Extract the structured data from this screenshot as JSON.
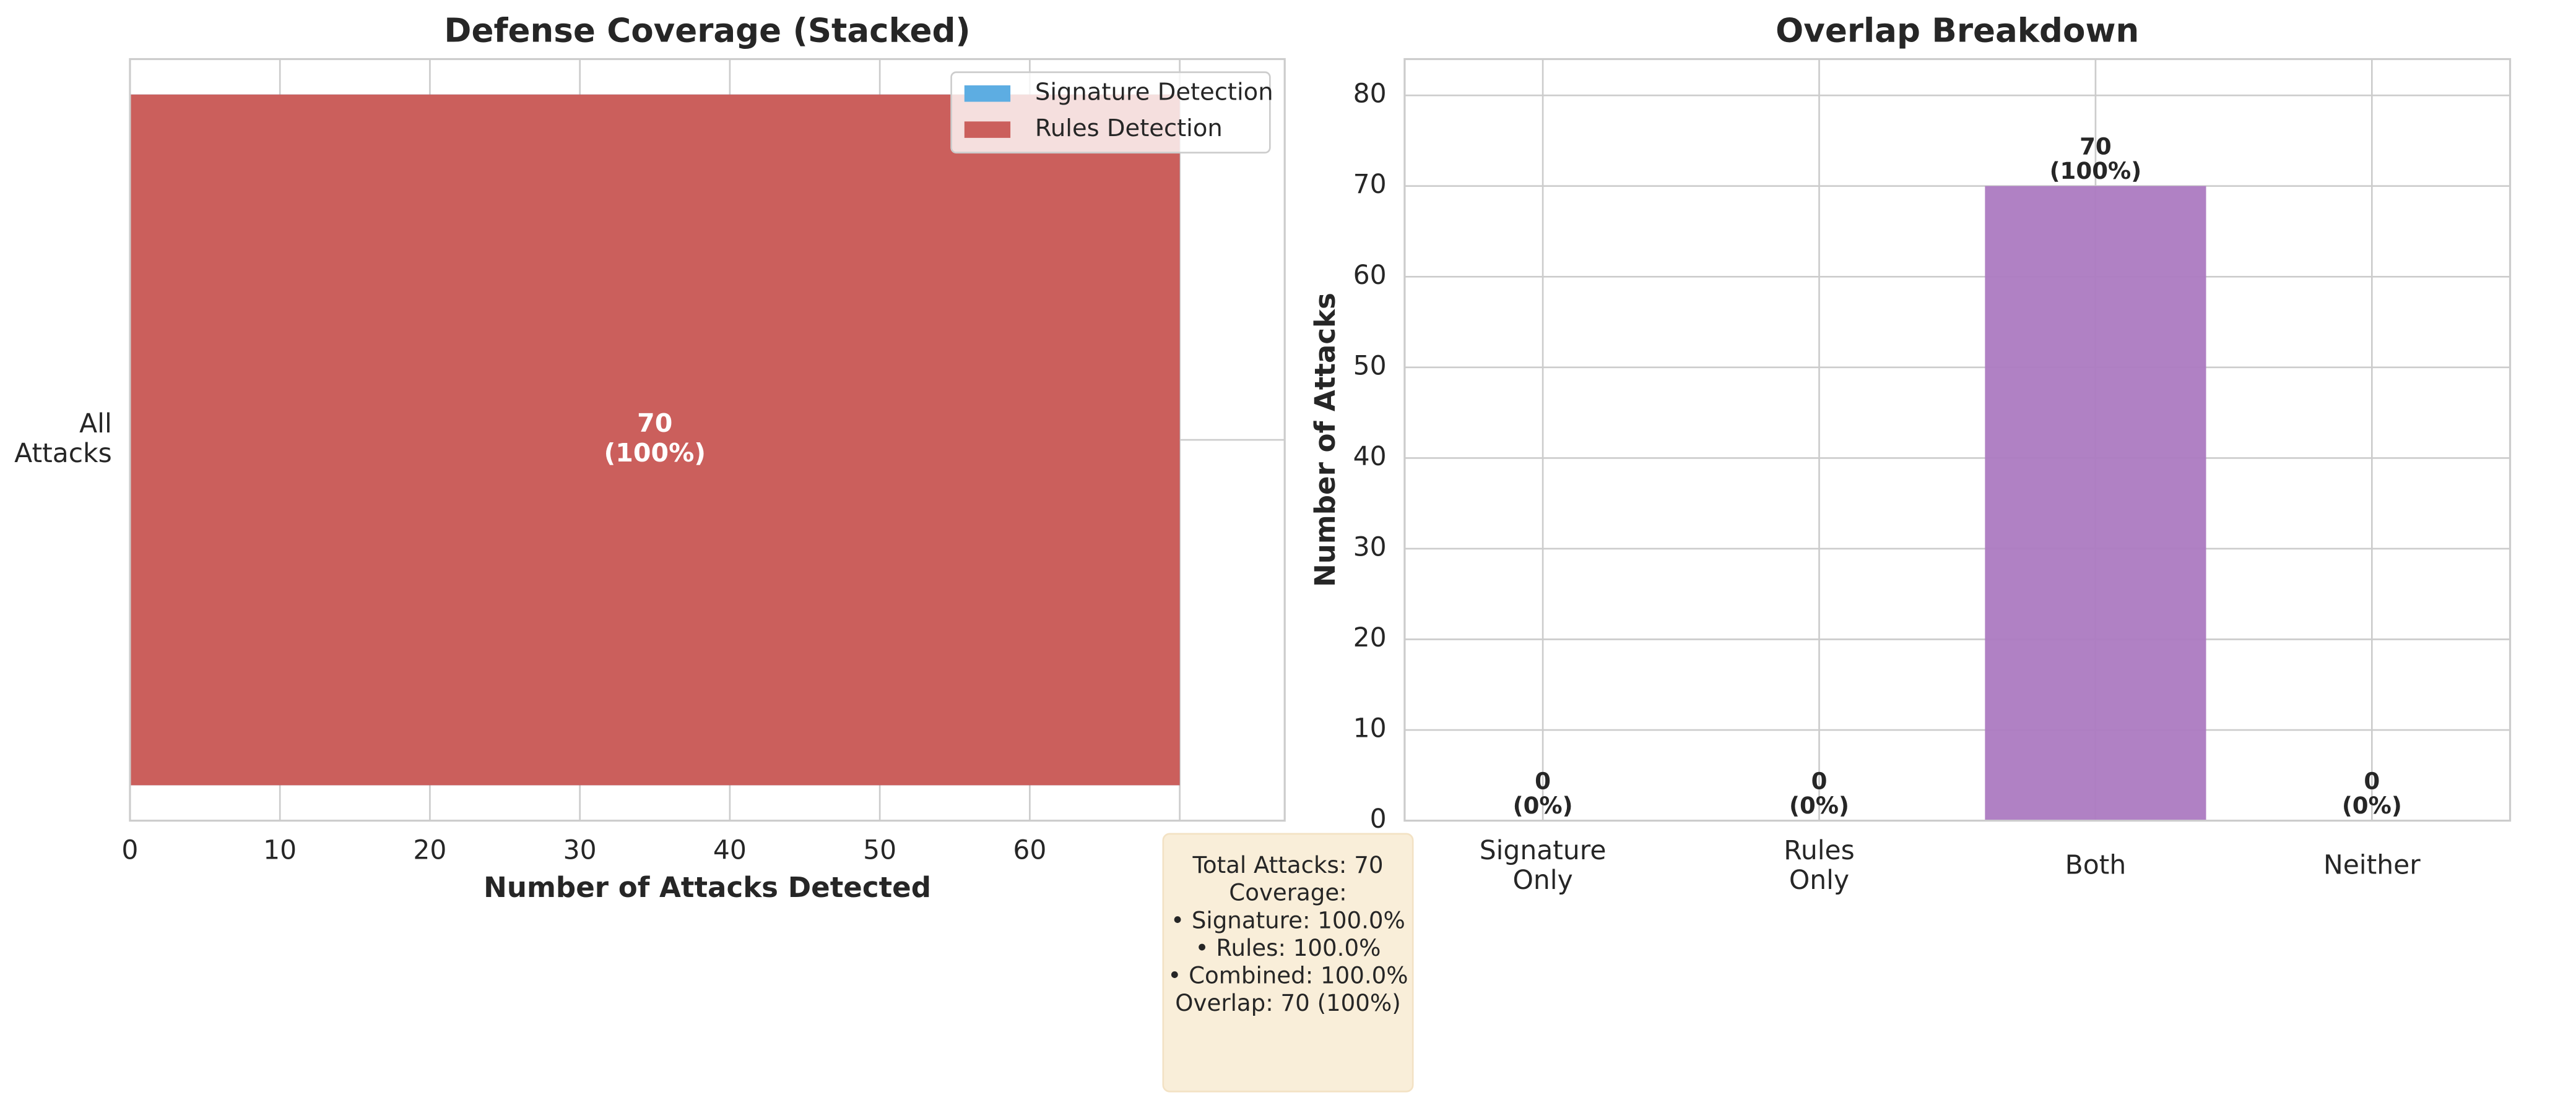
{
  "charts": [
    {
      "type": "barh",
      "title": "Defense Coverage (Stacked)",
      "categories": [
        "All\nAttacks"
      ],
      "series": [
        {
          "name": "Signature Detection",
          "color": "#5dade2",
          "values": [
            70
          ]
        },
        {
          "name": "Rules Detection",
          "color": "#cb5f5c",
          "values": [
            70
          ],
          "value_labels": [
            "70\n(100%)"
          ]
        }
      ],
      "xlabel": "Number of Attacks Detected",
      "xlim": [
        0,
        77
      ],
      "xticks": [
        0,
        10,
        20,
        30,
        40,
        50,
        60,
        70
      ],
      "grid": true,
      "legend": "upper right"
    },
    {
      "type": "bar",
      "title": "Overlap Breakdown",
      "categories": [
        "Signature\nOnly",
        "Rules\nOnly",
        "Both",
        "Neither"
      ],
      "values": [
        0,
        0,
        70,
        0
      ],
      "value_labels": [
        "0\n(0%)",
        "0\n(0%)",
        "70\n(100%)",
        "0\n(0%)"
      ],
      "color": "#ac7ac1",
      "ylabel": "Number of Attacks",
      "ylim": [
        0,
        84
      ],
      "yticks": [
        0,
        10,
        20,
        30,
        40,
        50,
        60,
        70,
        80
      ],
      "grid": true
    }
  ],
  "annotation": "Total Attacks: 70\n\nCoverage:\n• Signature: 100.0%\n• Rules: 100.0%\n• Combined: 100.0%\n\nOverlap: 70 (100%)"
}
